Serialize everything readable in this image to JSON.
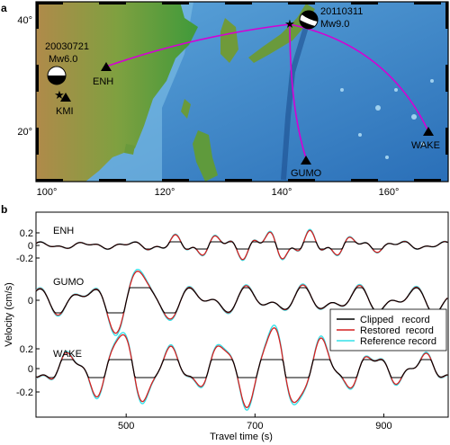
{
  "panels": {
    "a": "a",
    "b": "b"
  },
  "map": {
    "lat_ticks": [
      "40°",
      "20°"
    ],
    "lon_ticks": [
      "100°",
      "120°",
      "140°",
      "160°"
    ],
    "events": [
      {
        "date": "20030721",
        "mag": "Mw6.0"
      },
      {
        "date": "20110311",
        "mag": "Mw9.0"
      }
    ],
    "stations": [
      "ENH",
      "KMI",
      "GUMO",
      "WAKE"
    ],
    "colors": {
      "path": "#d400d4",
      "ocean": "#2f7fbf",
      "land": "#8a9a3a",
      "station": "#000000",
      "epicenter": "#d400d4"
    }
  },
  "chart_data": {
    "type": "line",
    "xlabel": "Travel time (s)",
    "ylabel": "Velocity (cm/s)",
    "xlim": [
      360,
      1000
    ],
    "x_ticks": [
      "500",
      "700",
      "900"
    ],
    "x_tick_values": [
      500,
      700,
      900
    ],
    "traces": [
      {
        "station": "ENH",
        "y_ticks": [
          "0.2",
          "0",
          "-0.2"
        ]
      },
      {
        "station": "GUMO",
        "y_ticks": [
          "0"
        ]
      },
      {
        "station": "WAKE",
        "y_ticks": [
          "0.2",
          "0",
          "-0.2"
        ]
      }
    ],
    "series": [
      {
        "name": "Clipped   record",
        "color": "#000000"
      },
      {
        "name": "Restored  record",
        "color": "#d42020"
      },
      {
        "name": "Reference record",
        "color": "#33e0e8"
      }
    ]
  }
}
